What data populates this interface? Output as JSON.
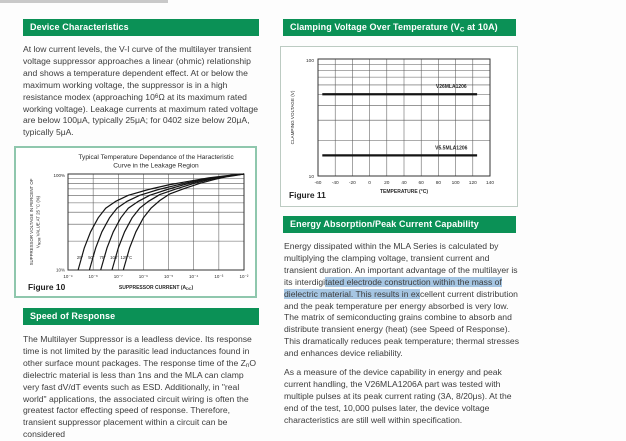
{
  "colors": {
    "header_green": "#0b9156",
    "header_text": "#ffffff",
    "body_text": "#3c3c3c",
    "highlight_blue": "#a6c6e3",
    "figure10_border": "#8fc7ad",
    "figure11_border": "#bccbc2",
    "chart_line": "#141414"
  },
  "left": {
    "device_header": "Device Characteristics",
    "device_para_segments": [
      {
        "text": "At low current levels, the V-I curve of the multilayer transient voltage suppressor approaches a linear (ohmic) relationship and shows a temperature dependent effect. At or below the maximum working voltage, the suppressor is in a high resistance modex (approaching 10"
      },
      {
        "text": "6",
        "sup": true
      },
      {
        "text": "Ω at its maximum rated working voltage). Leakage currents at maximum rated voltage are below 100μA, typically 25μA; for 0402 size below 20μA, typically 5μA."
      }
    ],
    "speed_header": "Speed of Response",
    "speed_para_segments": [
      {
        "text": "The Multilayer Suppressor is a leadless device. Its response time is not limited by the parasitic lead inductances found in other surface mount packages. The response time of the Z"
      },
      {
        "text": "n",
        "sub": true
      },
      {
        "text": "O dielectric material is less than 1ns and the MLA can clamp very fast dV/dT events such as ESD. Additionally, in \"real world\" applications, the associated circuit wiring is often the greatest factor effecting speed of response. Therefore, transient suppressor placement within a circuit can be considered"
      }
    ]
  },
  "right": {
    "clamping_header_segments": [
      {
        "text": "Clamping Voltage Over Temperature (V"
      },
      {
        "text": "C",
        "sub": true
      },
      {
        "text": " at 10A)"
      }
    ],
    "energy_header": "Energy Absorption/Peak Current Capability",
    "energy_para1_segments": [
      {
        "text": "Energy dissipated within the MLA Series is calculated by multiplying the clamping voltage, transient current and transient duration. An important advantage of the multilayer is its interdigi"
      },
      {
        "text": "tated electrode construction within the mass of dielectric material. This results in ex",
        "hl": true
      },
      {
        "text": "cellent current distribution and the peak temperature per energy absorbed is very low. The matrix of semiconducting grains combine to absorb and distribute transient energy (heat) (see Speed of Response). This dramatically reduces peak temperature; thermal stresses and enhances device reliability."
      }
    ],
    "energy_para2": "As a measure of the device capability in energy and peak current handling, the V26MLA1206A part was tested with multiple pulses at its peak current rating (3A, 8/20μs). At the end of the test, 10,000 pulses later, the device voltage characteristics are still well within specification."
  },
  "chart_data": [
    {
      "type": "line",
      "figure_label": "Figure 10",
      "title": "Typical Temperature Dependance of the Haracteristic Curve in the Leakage Region",
      "title_lines": [
        "Typical Temperature Dependance of the Haracteristic",
        "Curve in the Leakage Region"
      ],
      "xlabel_segments": [
        {
          "text": "SUPPRESSOR CURRENT (A"
        },
        {
          "text": "DC",
          "sub": true
        },
        {
          "text": ")"
        }
      ],
      "ylabel_line1": "SUPPRESSOR VOLTAGE IN PERCENT OF",
      "ylabel_line2_segments": [
        {
          "text": "V"
        },
        {
          "text": "NOM",
          "sub": true
        },
        {
          "text": " VALUE AT 25 °C (%)"
        }
      ],
      "x_scale": "log",
      "x_log_range": [
        -9,
        -2
      ],
      "x_tick_labels": [
        "10⁻⁹",
        "10⁻⁸",
        "10⁻⁷",
        "10⁻⁶",
        "10⁻⁵",
        "10⁻⁴",
        "10⁻³",
        "10⁻²"
      ],
      "y_scale": "log",
      "y_range": [
        10,
        100
      ],
      "y_tick_labels": {
        "top": "100%",
        "bottom": "10%"
      },
      "grid_y_values": [
        10,
        20,
        30,
        40,
        50,
        60,
        70,
        80,
        90,
        100
      ],
      "grid": true,
      "legend_position": "none",
      "series": [
        {
          "name": "25°",
          "label_log_x": -8.52,
          "label_y": 13,
          "points": [
            [
              -8.6,
              10
            ],
            [
              -8.35,
              17
            ],
            [
              -8.1,
              25
            ],
            [
              -7.8,
              35
            ],
            [
              -7.5,
              44
            ],
            [
              -7.1,
              52
            ],
            [
              -6.6,
              60
            ],
            [
              -5.8,
              69
            ],
            [
              -5.0,
              77
            ],
            [
              -4.2,
              84
            ],
            [
              -3.4,
              91
            ],
            [
              -2.7,
              96
            ],
            [
              -2.0,
              100
            ]
          ]
        },
        {
          "name": "50°",
          "label_log_x": -8.07,
          "label_y": 13,
          "points": [
            [
              -8.15,
              10
            ],
            [
              -7.9,
              17
            ],
            [
              -7.65,
              25
            ],
            [
              -7.35,
              35
            ],
            [
              -7.05,
              44
            ],
            [
              -6.65,
              52
            ],
            [
              -6.15,
              60
            ],
            [
              -5.4,
              69
            ],
            [
              -4.65,
              77
            ],
            [
              -3.9,
              85
            ],
            [
              -3.2,
              91
            ],
            [
              -2.6,
              96
            ],
            [
              -2.0,
              100
            ]
          ]
        },
        {
          "name": "75°",
          "label_log_x": -7.62,
          "label_y": 13,
          "points": [
            [
              -7.7,
              10
            ],
            [
              -7.45,
              17
            ],
            [
              -7.2,
              25
            ],
            [
              -6.9,
              35
            ],
            [
              -6.6,
              44
            ],
            [
              -6.2,
              52
            ],
            [
              -5.75,
              60
            ],
            [
              -5.05,
              69
            ],
            [
              -4.35,
              78
            ],
            [
              -3.65,
              86
            ],
            [
              -3.0,
              92
            ],
            [
              -2.5,
              97
            ],
            [
              -2.0,
              100
            ]
          ]
        },
        {
          "name": "100°",
          "label_log_x": -7.15,
          "label_y": 13,
          "points": [
            [
              -7.25,
              10
            ],
            [
              -7.0,
              17
            ],
            [
              -6.75,
              25
            ],
            [
              -6.45,
              35
            ],
            [
              -6.15,
              44
            ],
            [
              -5.8,
              52
            ],
            [
              -5.35,
              61
            ],
            [
              -4.7,
              70
            ],
            [
              -4.05,
              79
            ],
            [
              -3.4,
              87
            ],
            [
              -2.85,
              93
            ],
            [
              -2.4,
              97
            ],
            [
              -2.0,
              100
            ]
          ]
        },
        {
          "name": "125°C",
          "label_log_x": -6.68,
          "label_y": 13,
          "points": [
            [
              -6.8,
              10
            ],
            [
              -6.55,
              17
            ],
            [
              -6.3,
              25
            ],
            [
              -6.0,
              35
            ],
            [
              -5.7,
              44
            ],
            [
              -5.35,
              53
            ],
            [
              -4.95,
              62
            ],
            [
              -4.35,
              71
            ],
            [
              -3.75,
              80
            ],
            [
              -3.15,
              88
            ],
            [
              -2.65,
              94
            ],
            [
              -2.3,
              97
            ],
            [
              -2.0,
              100
            ]
          ]
        }
      ]
    },
    {
      "type": "line",
      "figure_label": "Figure 11",
      "ylabel": "CLAMPING VOLTAGE (V)",
      "xlabel": "TEMPERATURE (°C)",
      "x_range": [
        -60,
        140
      ],
      "x_ticks": [
        -60,
        -40,
        -20,
        0,
        20,
        40,
        60,
        80,
        100,
        120,
        140
      ],
      "y_scale": "log",
      "y_range": [
        10,
        100
      ],
      "y_tick_labels": {
        "top": "100",
        "bottom": "10"
      },
      "grid_y_values": [
        10,
        20,
        30,
        40,
        50,
        60,
        70,
        80,
        90,
        100
      ],
      "grid": true,
      "legend_position": "inline-labels",
      "series": [
        {
          "name": "V26MLA1206",
          "value_v": 50,
          "x_span": [
            -55,
            125
          ],
          "label_x": 95
        },
        {
          "name": "V5.5MLA1206",
          "value_v": 15,
          "x_span": [
            -55,
            125
          ],
          "label_x": 95
        }
      ]
    }
  ]
}
